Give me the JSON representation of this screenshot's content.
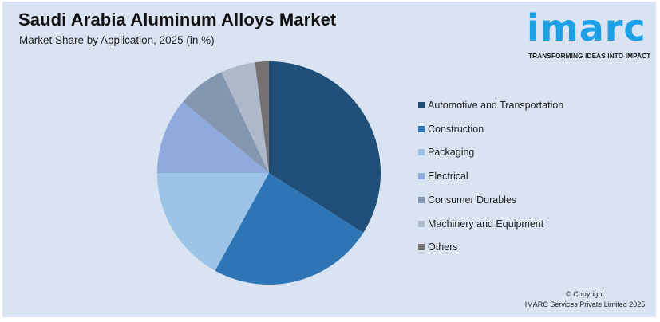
{
  "header": {
    "title": "Saudi Arabia Aluminum Alloys Market",
    "subtitle": "Market Share by Application, 2025 (in %)"
  },
  "logo": {
    "wordmark": "imarc",
    "tagline": "TRANSFORMING IDEAS INTO IMPACT",
    "color": "#1da1e6"
  },
  "footer": {
    "copyright_line1": "© Copyright",
    "copyright_line2": "IMARC Services Private Limited 2025"
  },
  "chart_data": {
    "type": "pie",
    "title": "Saudi Arabia Aluminum Alloys Market",
    "subtitle": "Market Share by Application, 2025 (in %)",
    "legend_position": "right",
    "start_angle_deg": 0,
    "direction": "clockwise",
    "categories": [
      "Automotive and Transportation",
      "Construction",
      "Packaging",
      "Electrical",
      "Consumer Durables",
      "Machinery and Equipment",
      "Others"
    ],
    "values": [
      34,
      24,
      17,
      11,
      7,
      5,
      2
    ],
    "colors": [
      "#1f4e79",
      "#2e75b6",
      "#9dc3e6",
      "#8faadc",
      "#8497b0",
      "#adb9ca",
      "#767171"
    ]
  }
}
